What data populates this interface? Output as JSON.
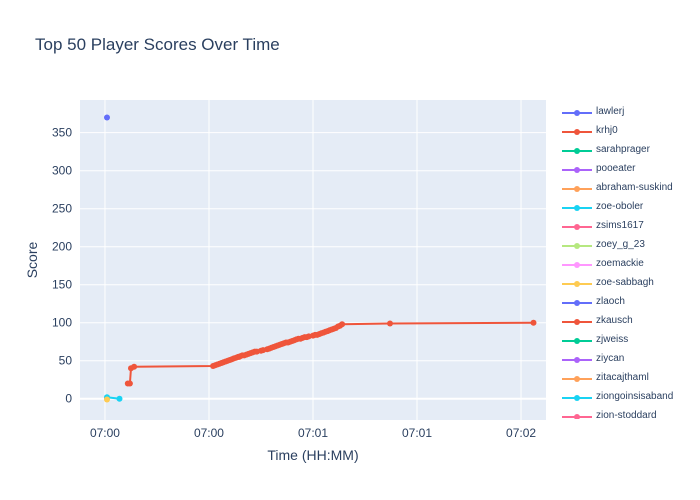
{
  "chart_data": {
    "type": "line",
    "title": "Top 50 Player Scores Over Time",
    "xlabel": "Time (HH:MM)",
    "ylabel": "Score",
    "ylim": [
      -28,
      393
    ],
    "yticks": [
      0,
      50,
      100,
      150,
      200,
      250,
      300,
      350
    ],
    "xlim": [
      -12,
      212
    ],
    "xtick_positions": [
      0,
      50,
      100,
      150,
      200
    ],
    "xtick_labels": [
      "07:00",
      "07:00",
      "07:01",
      "07:01",
      "07:02"
    ],
    "x_unit": "seconds after 07:00:00",
    "grid": true,
    "legend": "right",
    "background": "#e5ecf6",
    "series": [
      {
        "name": "lawlerj",
        "color": "#636efa",
        "x": [
          1
        ],
        "y": [
          370
        ]
      },
      {
        "name": "krhj0",
        "color": "#ef553b",
        "x": [
          11,
          12,
          12.5,
          14,
          52,
          53,
          54,
          55,
          56,
          57,
          58,
          59,
          60,
          61,
          62,
          63,
          64,
          64.5,
          65,
          66,
          67,
          68,
          69,
          70,
          71,
          72,
          73,
          75,
          76,
          78,
          79,
          80,
          81,
          82,
          83,
          84,
          85,
          86,
          87,
          88,
          89,
          90,
          91,
          92,
          93,
          94,
          95,
          96,
          97,
          98,
          100,
          101,
          102,
          103,
          104,
          105,
          106,
          107,
          108,
          109,
          110,
          111,
          112,
          113,
          114,
          137,
          206
        ],
        "y": [
          20,
          20,
          40,
          42,
          43,
          44,
          45,
          46,
          47,
          48,
          49,
          50,
          51,
          52,
          53,
          54,
          55,
          55,
          56,
          57,
          57,
          58,
          59,
          60,
          61,
          62,
          62,
          63,
          64,
          65,
          66,
          67,
          68,
          69,
          70,
          71,
          72,
          73,
          74,
          74,
          75,
          76,
          77,
          78,
          79,
          79,
          80,
          81,
          81,
          82,
          83,
          84,
          84,
          85,
          86,
          87,
          88,
          89,
          90,
          91,
          92,
          93,
          95,
          96,
          98,
          99,
          100
        ]
      },
      {
        "name": "sarahprager",
        "color": "#00cc96",
        "x": [],
        "y": []
      },
      {
        "name": "pooeater",
        "color": "#ab63fa",
        "x": [],
        "y": []
      },
      {
        "name": "abraham-suskind",
        "color": "#ffa15a",
        "x": [
          1
        ],
        "y": [
          1
        ]
      },
      {
        "name": "zoe-oboler",
        "color": "#19d3f3",
        "x": [
          1,
          7
        ],
        "y": [
          2,
          0
        ]
      },
      {
        "name": "zsims1617",
        "color": "#ff6692",
        "x": [],
        "y": []
      },
      {
        "name": "zoey_g_23",
        "color": "#b6e880",
        "x": [],
        "y": []
      },
      {
        "name": "zoemackie",
        "color": "#ff97ff",
        "x": [],
        "y": []
      },
      {
        "name": "zoe-sabbagh",
        "color": "#fecb52",
        "x": [
          1
        ],
        "y": [
          -1
        ]
      },
      {
        "name": "zlaoch",
        "color": "#636efa",
        "x": [],
        "y": []
      },
      {
        "name": "zkausch",
        "color": "#ef553b",
        "x": [],
        "y": []
      },
      {
        "name": "zjweiss",
        "color": "#00cc96",
        "x": [],
        "y": []
      },
      {
        "name": "ziycan",
        "color": "#ab63fa",
        "x": [],
        "y": []
      },
      {
        "name": "zitacajthaml",
        "color": "#ffa15a",
        "x": [],
        "y": []
      },
      {
        "name": "ziongoinsisaband",
        "color": "#19d3f3",
        "x": [],
        "y": []
      },
      {
        "name": "zion-stoddard",
        "color": "#ff6692",
        "x": [],
        "y": []
      }
    ]
  }
}
